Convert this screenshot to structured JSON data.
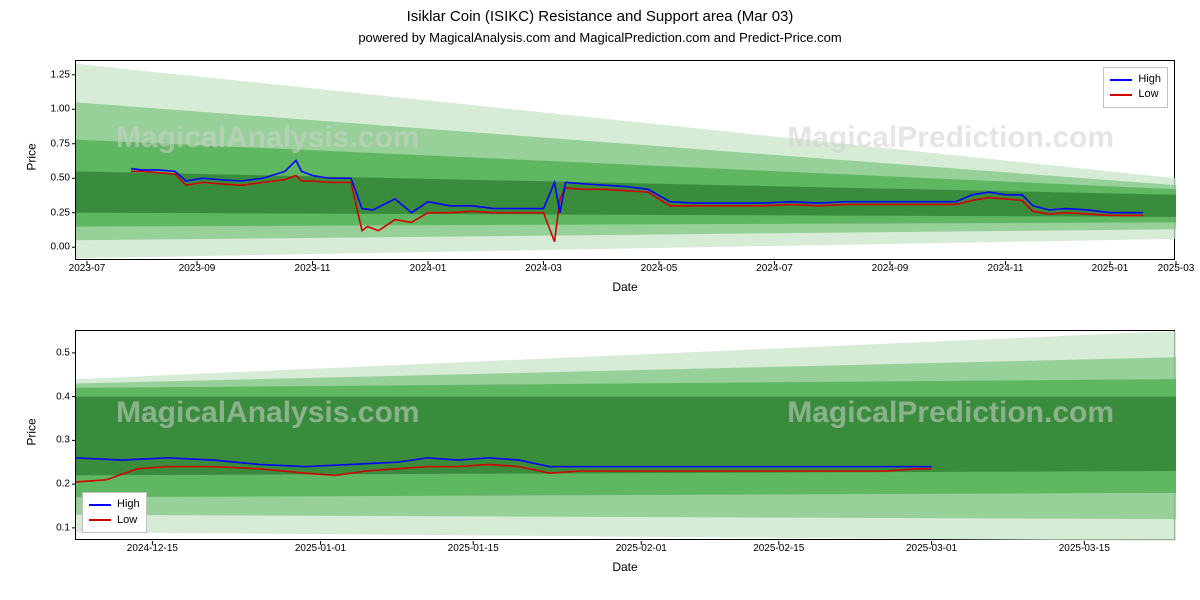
{
  "title": "Isiklar Coin (ISIKC) Resistance and Support area (Mar 03)",
  "subtitle": "powered by MagicalAnalysis.com and MagicalPrediction.com and Predict-Price.com",
  "watermark_left": "MagicalAnalysis.com",
  "watermark_right": "MagicalPrediction.com",
  "legend_high": "High",
  "legend_low": "Low",
  "colors": {
    "high_line": "#0000ff",
    "low_line": "#d40000",
    "band1": "#2e7d32",
    "band2": "#4caf50",
    "band3": "#81c784",
    "band4": "#c8e6c9",
    "axis": "#000000",
    "bg": "#ffffff"
  },
  "top_chart": {
    "type": "line-with-bands",
    "ylabel": "Price",
    "xlabel": "Date",
    "ylim_min": -0.1,
    "ylim_max": 1.35,
    "yticks": [
      0.0,
      0.25,
      0.5,
      0.75,
      1.0,
      1.25
    ],
    "xlim_min": 0,
    "xlim_max": 20,
    "xticks": [
      {
        "pos": 0.2,
        "label": "2023-07"
      },
      {
        "pos": 2.2,
        "label": "2023-09"
      },
      {
        "pos": 4.3,
        "label": "2023-11"
      },
      {
        "pos": 6.4,
        "label": "2024-01"
      },
      {
        "pos": 8.5,
        "label": "2024-03"
      },
      {
        "pos": 10.6,
        "label": "2024-05"
      },
      {
        "pos": 12.7,
        "label": "2024-07"
      },
      {
        "pos": 14.8,
        "label": "2024-09"
      },
      {
        "pos": 16.9,
        "label": "2024-11"
      },
      {
        "pos": 18.8,
        "label": "2025-01"
      },
      {
        "pos": 20.0,
        "label": "2025-03"
      }
    ],
    "bands": [
      {
        "y0_start": -0.08,
        "y1_start": 1.33,
        "y0_end": 0.06,
        "y1_end": 0.5,
        "color_key": "band4"
      },
      {
        "y0_start": 0.05,
        "y1_start": 1.05,
        "y0_end": 0.13,
        "y1_end": 0.45,
        "color_key": "band3"
      },
      {
        "y0_start": 0.15,
        "y1_start": 0.78,
        "y0_end": 0.18,
        "y1_end": 0.42,
        "color_key": "band2"
      },
      {
        "y0_start": 0.25,
        "y1_start": 0.55,
        "y0_end": 0.22,
        "y1_end": 0.38,
        "color_key": "band1"
      }
    ],
    "series_high": [
      {
        "x": 1.0,
        "y": 0.57
      },
      {
        "x": 1.2,
        "y": 0.56
      },
      {
        "x": 1.5,
        "y": 0.56
      },
      {
        "x": 1.8,
        "y": 0.55
      },
      {
        "x": 2.0,
        "y": 0.48
      },
      {
        "x": 2.3,
        "y": 0.5
      },
      {
        "x": 2.6,
        "y": 0.49
      },
      {
        "x": 3.0,
        "y": 0.48
      },
      {
        "x": 3.4,
        "y": 0.5
      },
      {
        "x": 3.8,
        "y": 0.55
      },
      {
        "x": 4.0,
        "y": 0.63
      },
      {
        "x": 4.1,
        "y": 0.55
      },
      {
        "x": 4.3,
        "y": 0.52
      },
      {
        "x": 4.6,
        "y": 0.5
      },
      {
        "x": 5.0,
        "y": 0.5
      },
      {
        "x": 5.2,
        "y": 0.28
      },
      {
        "x": 5.4,
        "y": 0.27
      },
      {
        "x": 5.8,
        "y": 0.35
      },
      {
        "x": 6.1,
        "y": 0.25
      },
      {
        "x": 6.4,
        "y": 0.33
      },
      {
        "x": 6.8,
        "y": 0.3
      },
      {
        "x": 7.2,
        "y": 0.3
      },
      {
        "x": 7.6,
        "y": 0.28
      },
      {
        "x": 8.0,
        "y": 0.28
      },
      {
        "x": 8.5,
        "y": 0.28
      },
      {
        "x": 8.7,
        "y": 0.47
      },
      {
        "x": 8.8,
        "y": 0.25
      },
      {
        "x": 8.9,
        "y": 0.47
      },
      {
        "x": 9.2,
        "y": 0.46
      },
      {
        "x": 9.6,
        "y": 0.45
      },
      {
        "x": 10.0,
        "y": 0.44
      },
      {
        "x": 10.4,
        "y": 0.42
      },
      {
        "x": 10.8,
        "y": 0.33
      },
      {
        "x": 11.2,
        "y": 0.32
      },
      {
        "x": 11.6,
        "y": 0.32
      },
      {
        "x": 12.0,
        "y": 0.32
      },
      {
        "x": 12.5,
        "y": 0.32
      },
      {
        "x": 13.0,
        "y": 0.33
      },
      {
        "x": 13.5,
        "y": 0.32
      },
      {
        "x": 14.0,
        "y": 0.33
      },
      {
        "x": 14.5,
        "y": 0.33
      },
      {
        "x": 15.0,
        "y": 0.33
      },
      {
        "x": 15.5,
        "y": 0.33
      },
      {
        "x": 16.0,
        "y": 0.33
      },
      {
        "x": 16.3,
        "y": 0.38
      },
      {
        "x": 16.6,
        "y": 0.4
      },
      {
        "x": 16.9,
        "y": 0.38
      },
      {
        "x": 17.2,
        "y": 0.38
      },
      {
        "x": 17.4,
        "y": 0.3
      },
      {
        "x": 17.7,
        "y": 0.27
      },
      {
        "x": 18.0,
        "y": 0.28
      },
      {
        "x": 18.4,
        "y": 0.27
      },
      {
        "x": 18.8,
        "y": 0.25
      },
      {
        "x": 19.2,
        "y": 0.25
      },
      {
        "x": 19.4,
        "y": 0.25
      }
    ],
    "series_low": [
      {
        "x": 1.0,
        "y": 0.55
      },
      {
        "x": 1.2,
        "y": 0.55
      },
      {
        "x": 1.5,
        "y": 0.54
      },
      {
        "x": 1.8,
        "y": 0.53
      },
      {
        "x": 2.0,
        "y": 0.45
      },
      {
        "x": 2.3,
        "y": 0.47
      },
      {
        "x": 2.6,
        "y": 0.46
      },
      {
        "x": 3.0,
        "y": 0.45
      },
      {
        "x": 3.4,
        "y": 0.47
      },
      {
        "x": 3.8,
        "y": 0.49
      },
      {
        "x": 4.0,
        "y": 0.52
      },
      {
        "x": 4.1,
        "y": 0.48
      },
      {
        "x": 4.3,
        "y": 0.48
      },
      {
        "x": 4.6,
        "y": 0.47
      },
      {
        "x": 5.0,
        "y": 0.47
      },
      {
        "x": 5.2,
        "y": 0.12
      },
      {
        "x": 5.3,
        "y": 0.15
      },
      {
        "x": 5.5,
        "y": 0.12
      },
      {
        "x": 5.8,
        "y": 0.2
      },
      {
        "x": 6.1,
        "y": 0.18
      },
      {
        "x": 6.4,
        "y": 0.25
      },
      {
        "x": 6.8,
        "y": 0.25
      },
      {
        "x": 7.2,
        "y": 0.26
      },
      {
        "x": 7.6,
        "y": 0.25
      },
      {
        "x": 8.0,
        "y": 0.25
      },
      {
        "x": 8.5,
        "y": 0.25
      },
      {
        "x": 8.7,
        "y": 0.04
      },
      {
        "x": 8.8,
        "y": 0.35
      },
      {
        "x": 8.9,
        "y": 0.43
      },
      {
        "x": 9.2,
        "y": 0.42
      },
      {
        "x": 9.6,
        "y": 0.42
      },
      {
        "x": 10.0,
        "y": 0.41
      },
      {
        "x": 10.4,
        "y": 0.4
      },
      {
        "x": 10.8,
        "y": 0.3
      },
      {
        "x": 11.2,
        "y": 0.3
      },
      {
        "x": 11.6,
        "y": 0.3
      },
      {
        "x": 12.0,
        "y": 0.3
      },
      {
        "x": 12.5,
        "y": 0.3
      },
      {
        "x": 13.0,
        "y": 0.31
      },
      {
        "x": 13.5,
        "y": 0.3
      },
      {
        "x": 14.0,
        "y": 0.31
      },
      {
        "x": 14.5,
        "y": 0.31
      },
      {
        "x": 15.0,
        "y": 0.31
      },
      {
        "x": 15.5,
        "y": 0.31
      },
      {
        "x": 16.0,
        "y": 0.31
      },
      {
        "x": 16.3,
        "y": 0.34
      },
      {
        "x": 16.6,
        "y": 0.36
      },
      {
        "x": 16.9,
        "y": 0.35
      },
      {
        "x": 17.2,
        "y": 0.34
      },
      {
        "x": 17.4,
        "y": 0.26
      },
      {
        "x": 17.7,
        "y": 0.24
      },
      {
        "x": 18.0,
        "y": 0.25
      },
      {
        "x": 18.4,
        "y": 0.24
      },
      {
        "x": 18.8,
        "y": 0.23
      },
      {
        "x": 19.2,
        "y": 0.23
      },
      {
        "x": 19.4,
        "y": 0.23
      }
    ]
  },
  "bottom_chart": {
    "type": "line-with-bands",
    "ylabel": "Price",
    "xlabel": "Date",
    "ylim_min": 0.07,
    "ylim_max": 0.55,
    "yticks": [
      0.1,
      0.2,
      0.3,
      0.4,
      0.5
    ],
    "xlim_min": 0,
    "xlim_max": 7.2,
    "xticks": [
      {
        "pos": 0.5,
        "label": "2024-12-15"
      },
      {
        "pos": 1.6,
        "label": "2025-01-01"
      },
      {
        "pos": 2.6,
        "label": "2025-01-15"
      },
      {
        "pos": 3.7,
        "label": "2025-02-01"
      },
      {
        "pos": 4.6,
        "label": "2025-02-15"
      },
      {
        "pos": 5.6,
        "label": "2025-03-01"
      },
      {
        "pos": 6.6,
        "label": "2025-03-15"
      }
    ],
    "bands": [
      {
        "y0_start": 0.09,
        "y1_start": 0.44,
        "y0_end": 0.07,
        "y1_end": 0.55,
        "color_key": "band4"
      },
      {
        "y0_start": 0.13,
        "y1_start": 0.43,
        "y0_end": 0.12,
        "y1_end": 0.49,
        "color_key": "band3"
      },
      {
        "y0_start": 0.17,
        "y1_start": 0.42,
        "y0_end": 0.18,
        "y1_end": 0.44,
        "color_key": "band2"
      },
      {
        "y0_start": 0.22,
        "y1_start": 0.4,
        "y0_end": 0.23,
        "y1_end": 0.4,
        "color_key": "band1"
      }
    ],
    "series_high": [
      {
        "x": 0.0,
        "y": 0.26
      },
      {
        "x": 0.3,
        "y": 0.255
      },
      {
        "x": 0.6,
        "y": 0.26
      },
      {
        "x": 0.9,
        "y": 0.255
      },
      {
        "x": 1.2,
        "y": 0.245
      },
      {
        "x": 1.5,
        "y": 0.24
      },
      {
        "x": 1.8,
        "y": 0.245
      },
      {
        "x": 2.1,
        "y": 0.25
      },
      {
        "x": 2.3,
        "y": 0.26
      },
      {
        "x": 2.5,
        "y": 0.255
      },
      {
        "x": 2.7,
        "y": 0.26
      },
      {
        "x": 2.9,
        "y": 0.255
      },
      {
        "x": 3.1,
        "y": 0.24
      },
      {
        "x": 3.3,
        "y": 0.24
      },
      {
        "x": 3.5,
        "y": 0.24
      },
      {
        "x": 3.8,
        "y": 0.24
      },
      {
        "x": 4.1,
        "y": 0.24
      },
      {
        "x": 4.4,
        "y": 0.24
      },
      {
        "x": 4.7,
        "y": 0.24
      },
      {
        "x": 5.0,
        "y": 0.24
      },
      {
        "x": 5.3,
        "y": 0.24
      },
      {
        "x": 5.5,
        "y": 0.24
      },
      {
        "x": 5.6,
        "y": 0.24
      }
    ],
    "series_low": [
      {
        "x": 0.0,
        "y": 0.205
      },
      {
        "x": 0.2,
        "y": 0.21
      },
      {
        "x": 0.4,
        "y": 0.235
      },
      {
        "x": 0.6,
        "y": 0.24
      },
      {
        "x": 0.9,
        "y": 0.24
      },
      {
        "x": 1.2,
        "y": 0.235
      },
      {
        "x": 1.5,
        "y": 0.225
      },
      {
        "x": 1.7,
        "y": 0.22
      },
      {
        "x": 1.9,
        "y": 0.23
      },
      {
        "x": 2.1,
        "y": 0.235
      },
      {
        "x": 2.3,
        "y": 0.24
      },
      {
        "x": 2.5,
        "y": 0.24
      },
      {
        "x": 2.7,
        "y": 0.245
      },
      {
        "x": 2.9,
        "y": 0.24
      },
      {
        "x": 3.1,
        "y": 0.225
      },
      {
        "x": 3.3,
        "y": 0.23
      },
      {
        "x": 3.5,
        "y": 0.23
      },
      {
        "x": 3.8,
        "y": 0.23
      },
      {
        "x": 4.1,
        "y": 0.23
      },
      {
        "x": 4.4,
        "y": 0.23
      },
      {
        "x": 4.7,
        "y": 0.23
      },
      {
        "x": 5.0,
        "y": 0.23
      },
      {
        "x": 5.3,
        "y": 0.23
      },
      {
        "x": 5.5,
        "y": 0.235
      },
      {
        "x": 5.6,
        "y": 0.235
      }
    ]
  }
}
